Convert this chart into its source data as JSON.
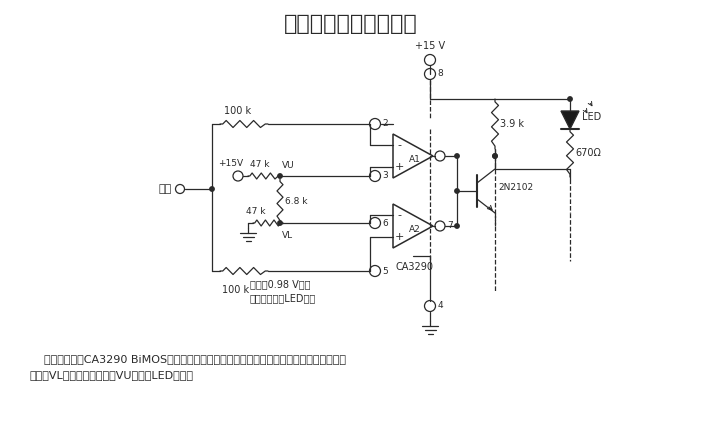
{
  "title": "高输入阻抗窗口比较器",
  "bg_color": "#ffffff",
  "line_color": "#2a2a2a",
  "desc1": "    本电路既使用CA3290 BiMOS双重电压比较器的一半，又使用其另一半。凡在输入信号高于",
  "desc2": "下限（VL）而又低于上限（VU）时，LED就发亮",
  "note1": "窗口＝0.98 V宽，",
  "note2": "在窗口内时，LED发亮"
}
